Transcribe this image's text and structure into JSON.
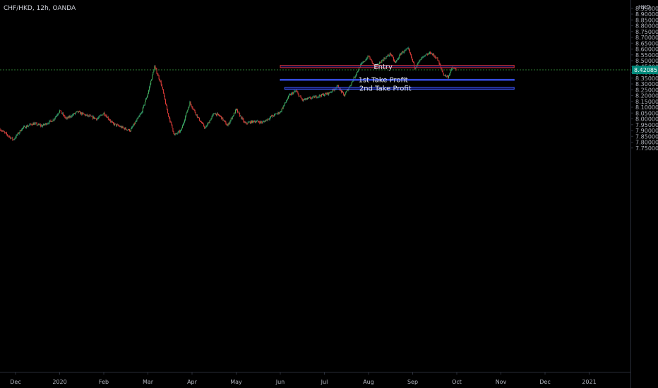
{
  "header": {
    "symbol": "CHF/HKD, 12h, OANDA",
    "currency": "HKD"
  },
  "colors": {
    "background": "#000000",
    "up": "#26a69a",
    "down": "#ef5350",
    "up_body": "#4caf50",
    "down_body": "#e53935",
    "axis_text": "#b2b5be",
    "current_price_line": "#2e7d32",
    "current_price_badge": "#00897b",
    "zone_fill": "#1a1a8a",
    "zone_border_red": "#d32f2f",
    "zone_border_blue": "#3d5afe"
  },
  "chart_data": {
    "type": "candlestick",
    "ylim": [
      7.72,
      9.0
    ],
    "y_ticks": [
      "9.00000",
      "8.95000",
      "8.90000",
      "8.85000",
      "8.80000",
      "8.75000",
      "8.70000",
      "8.65000",
      "8.60000",
      "8.55000",
      "8.50000",
      "8.45000",
      "8.40000",
      "8.35000",
      "8.30000",
      "8.25000",
      "8.20000",
      "8.15000",
      "8.10000",
      "8.05000",
      "8.00000",
      "7.95000",
      "7.90000",
      "7.85000",
      "7.80000",
      "7.75000"
    ],
    "y_tick_values": [
      9.0,
      8.95,
      8.9,
      8.85,
      8.8,
      8.75,
      8.7,
      8.65,
      8.6,
      8.55,
      8.5,
      8.45,
      8.4,
      8.35,
      8.3,
      8.25,
      8.2,
      8.15,
      8.1,
      8.05,
      8.0,
      7.95,
      7.9,
      7.85,
      7.8,
      7.75
    ],
    "x_labels": [
      "Dec",
      "2020",
      "Feb",
      "Mar",
      "Apr",
      "May",
      "Jun",
      "Jul",
      "Aug",
      "Sep",
      "Oct",
      "Nov",
      "Dec",
      "2021"
    ],
    "x_label_months": [
      0,
      1,
      2,
      3,
      4,
      5,
      6,
      7,
      8,
      9,
      10,
      11,
      12,
      13
    ],
    "current_price": {
      "value": 8.42085,
      "label": "8.42085"
    },
    "zones": [
      {
        "label": "Entry",
        "top": 8.46,
        "bottom": 8.44,
        "start_month": 6.0,
        "end_month": 11.3,
        "border": "red"
      },
      {
        "label": "1st Take Profit",
        "top": 8.34,
        "bottom": 8.33,
        "start_month": 6.0,
        "end_month": 11.3,
        "border": "blue"
      },
      {
        "label": "2nd Take Profit",
        "top": 8.27,
        "bottom": 8.255,
        "start_month": 6.1,
        "end_month": 11.3,
        "border": "blue"
      }
    ],
    "price_path": [
      [
        -0.35,
        7.91
      ],
      [
        -0.05,
        7.82
      ],
      [
        0.15,
        7.92
      ],
      [
        0.4,
        7.96
      ],
      [
        0.6,
        7.94
      ],
      [
        0.85,
        7.99
      ],
      [
        1.0,
        8.07
      ],
      [
        1.15,
        8.0
      ],
      [
        1.4,
        8.06
      ],
      [
        1.6,
        8.03
      ],
      [
        1.85,
        8.0
      ],
      [
        2.0,
        8.05
      ],
      [
        2.2,
        7.96
      ],
      [
        2.45,
        7.92
      ],
      [
        2.6,
        7.9
      ],
      [
        2.85,
        8.05
      ],
      [
        3.0,
        8.22
      ],
      [
        3.15,
        8.45
      ],
      [
        3.3,
        8.3
      ],
      [
        3.45,
        8.05
      ],
      [
        3.6,
        7.86
      ],
      [
        3.75,
        7.9
      ],
      [
        3.95,
        8.14
      ],
      [
        4.15,
        8.0
      ],
      [
        4.3,
        7.92
      ],
      [
        4.5,
        8.05
      ],
      [
        4.65,
        8.02
      ],
      [
        4.8,
        7.94
      ],
      [
        5.0,
        8.08
      ],
      [
        5.2,
        7.96
      ],
      [
        5.4,
        7.98
      ],
      [
        5.6,
        7.97
      ],
      [
        5.8,
        8.02
      ],
      [
        6.0,
        8.06
      ],
      [
        6.2,
        8.2
      ],
      [
        6.35,
        8.24
      ],
      [
        6.5,
        8.16
      ],
      [
        6.7,
        8.18
      ],
      [
        6.9,
        8.2
      ],
      [
        7.1,
        8.22
      ],
      [
        7.3,
        8.28
      ],
      [
        7.45,
        8.2
      ],
      [
        7.6,
        8.3
      ],
      [
        7.8,
        8.45
      ],
      [
        8.0,
        8.54
      ],
      [
        8.15,
        8.44
      ],
      [
        8.3,
        8.5
      ],
      [
        8.5,
        8.56
      ],
      [
        8.6,
        8.48
      ],
      [
        8.75,
        8.57
      ],
      [
        8.9,
        8.6
      ],
      [
        9.05,
        8.44
      ],
      [
        9.2,
        8.52
      ],
      [
        9.4,
        8.57
      ],
      [
        9.55,
        8.52
      ],
      [
        9.7,
        8.38
      ],
      [
        9.8,
        8.36
      ],
      [
        9.9,
        8.44
      ],
      [
        10.0,
        8.42
      ]
    ],
    "candles_per_month": 60
  }
}
